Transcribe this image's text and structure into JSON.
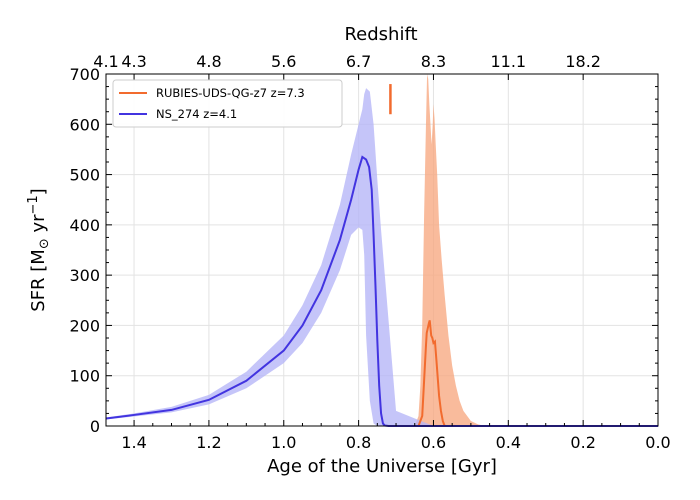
{
  "chart_data": {
    "type": "line",
    "xlabel": "Age of the Universe [Gyr]",
    "ylabel_main": "SFR [M",
    "ylabel_sub": "⊙",
    "ylabel_unit": " yr",
    "ylabel_exp": "−1",
    "ylabel_close": "]",
    "top_axis_label": "Redshift",
    "xlim": [
      1.475,
      0.0
    ],
    "ylim": [
      0,
      700
    ],
    "x_ticks": [
      1.4,
      1.2,
      1.0,
      0.8,
      0.6,
      0.4,
      0.2,
      0.0
    ],
    "x_tick_labels": [
      "1.4",
      "1.2",
      "1.0",
      "0.8",
      "0.6",
      "0.4",
      "0.2",
      "0.0"
    ],
    "y_ticks": [
      0,
      100,
      200,
      300,
      400,
      500,
      600,
      700
    ],
    "y_tick_labels": [
      "0",
      "100",
      "200",
      "300",
      "400",
      "500",
      "600",
      "700"
    ],
    "top_ticks": [
      {
        "label": "4.1",
        "age": 1.475
      },
      {
        "label": "4.3",
        "age": 1.4
      },
      {
        "label": "4.8",
        "age": 1.2
      },
      {
        "label": "5.6",
        "age": 1.0
      },
      {
        "label": "6.7",
        "age": 0.8
      },
      {
        "label": "8.3",
        "age": 0.6
      },
      {
        "label": "11.1",
        "age": 0.4
      },
      {
        "label": "18.2",
        "age": 0.2
      }
    ],
    "grid": true,
    "legend_position": "top-left",
    "series": [
      {
        "name": "RUBIES-UDS-QG-z7 z=7.3",
        "color": "#f26b2e",
        "band_color": "#f7a880",
        "x": [
          0.64,
          0.63,
          0.625,
          0.62,
          0.618,
          0.615,
          0.612,
          0.61,
          0.606,
          0.603,
          0.6,
          0.596,
          0.592,
          0.588,
          0.585,
          0.58,
          0.575,
          0.57
        ],
        "y": [
          0,
          20,
          90,
          160,
          185,
          195,
          205,
          210,
          180,
          175,
          165,
          168,
          130,
          90,
          60,
          30,
          10,
          0
        ],
        "band_x": [
          0.65,
          0.64,
          0.635,
          0.63,
          0.625,
          0.62,
          0.617,
          0.614,
          0.611,
          0.608,
          0.605,
          0.602,
          0.6,
          0.597,
          0.594,
          0.59,
          0.585,
          0.578,
          0.57,
          0.56,
          0.55,
          0.54,
          0.53,
          0.52,
          0.5,
          0.48,
          0.46
        ],
        "band_low": [
          0,
          0,
          0,
          0,
          0,
          0,
          0,
          0,
          0,
          0,
          0,
          0,
          0,
          0,
          0,
          0,
          0,
          0,
          0,
          0,
          0,
          0,
          0,
          0,
          0,
          0,
          0
        ],
        "band_high": [
          0,
          20,
          80,
          200,
          420,
          600,
          700,
          690,
          640,
          600,
          560,
          600,
          640,
          610,
          560,
          500,
          400,
          330,
          260,
          180,
          120,
          80,
          50,
          30,
          10,
          3,
          0
        ],
        "marker": {
          "x": 0.715,
          "y_low": 620,
          "y_high": 680
        }
      },
      {
        "name": "NS_274 z=4.1",
        "color": "#4234e0",
        "band_color": "#b5b5f7",
        "x": [
          1.475,
          1.4,
          1.3,
          1.2,
          1.1,
          1.0,
          0.95,
          0.9,
          0.85,
          0.82,
          0.8,
          0.79,
          0.78,
          0.772,
          0.765,
          0.76,
          0.755,
          0.75,
          0.745,
          0.74,
          0.735,
          0.73,
          0.72,
          0.7,
          0.6,
          0.4,
          0.2,
          0.0
        ],
        "y": [
          15,
          22,
          32,
          52,
          90,
          150,
          200,
          270,
          370,
          450,
          510,
          535,
          530,
          515,
          470,
          380,
          280,
          170,
          80,
          25,
          5,
          1,
          0,
          0,
          0,
          0,
          0,
          0
        ],
        "band_x": [
          1.475,
          1.4,
          1.3,
          1.2,
          1.1,
          1.0,
          0.95,
          0.9,
          0.85,
          0.82,
          0.8,
          0.79,
          0.785,
          0.78,
          0.77,
          0.76,
          0.75,
          0.74,
          0.73,
          0.72,
          0.71,
          0.7,
          0.6,
          0.4,
          0.2,
          0.0
        ],
        "band_low": [
          13,
          19,
          27,
          43,
          75,
          125,
          165,
          225,
          310,
          380,
          395,
          390,
          340,
          180,
          50,
          5,
          0,
          0,
          0,
          0,
          0,
          0,
          0,
          0,
          0,
          0
        ],
        "band_high": [
          17,
          25,
          38,
          62,
          108,
          180,
          240,
          320,
          440,
          540,
          600,
          630,
          660,
          672,
          665,
          600,
          490,
          390,
          300,
          210,
          120,
          30,
          0,
          0,
          0,
          0
        ]
      }
    ]
  }
}
